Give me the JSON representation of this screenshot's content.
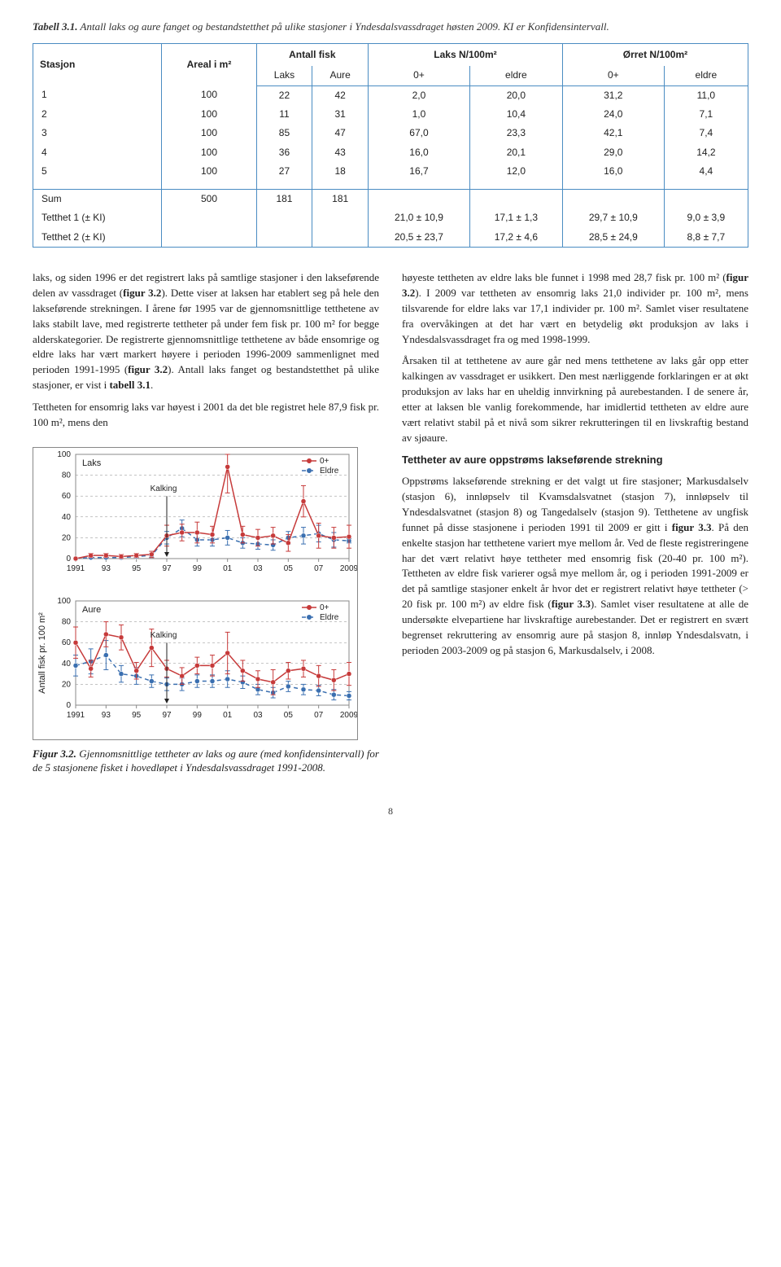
{
  "caption": {
    "label": "Tabell 3.1.",
    "text": " Antall laks og aure fanget og bestandstetthet på ulike stasjoner i Yndesdalsvassdraget høsten 2009. KI er Konfidensintervall."
  },
  "table": {
    "headers": {
      "stasjon": "Stasjon",
      "areal": "Areal i m²",
      "antall": "Antall fisk",
      "laksN": "Laks N/100m²",
      "orretN": "Ørret N/100m²",
      "laks": "Laks",
      "aure": "Aure",
      "zp": "0+",
      "eldre": "eldre"
    },
    "rows": [
      {
        "st": "1",
        "ar": "100",
        "la": "22",
        "au": "42",
        "l0": "2,0",
        "le": "20,0",
        "o0": "31,2",
        "oe": "11,0"
      },
      {
        "st": "2",
        "ar": "100",
        "la": "11",
        "au": "31",
        "l0": "1,0",
        "le": "10,4",
        "o0": "24,0",
        "oe": "7,1"
      },
      {
        "st": "3",
        "ar": "100",
        "la": "85",
        "au": "47",
        "l0": "67,0",
        "le": "23,3",
        "o0": "42,1",
        "oe": "7,4"
      },
      {
        "st": "4",
        "ar": "100",
        "la": "36",
        "au": "43",
        "l0": "16,0",
        "le": "20,1",
        "o0": "29,0",
        "oe": "14,2"
      },
      {
        "st": "5",
        "ar": "100",
        "la": "27",
        "au": "18",
        "l0": "16,7",
        "le": "12,0",
        "o0": "16,0",
        "oe": "4,4"
      }
    ],
    "sum": {
      "label": "Sum",
      "ar": "500",
      "la": "181",
      "au": "181"
    },
    "t1": {
      "label": "Tetthet 1 (± KI)",
      "l0": "21,0 ± 10,9",
      "le": "17,1 ± 1,3",
      "o0": "29,7 ± 10,9",
      "oe": "9,0 ± 3,9"
    },
    "t2": {
      "label": "Tetthet 2 (± KI)",
      "l0": "20,5 ± 23,7",
      "le": "17,2 ± 4,6",
      "o0": "28,5 ± 24,9",
      "oe": "8,8 ± 7,7"
    }
  },
  "body": {
    "left1": "laks, og siden 1996 er det registrert laks på samtlige stasjoner i den lakseførende delen av vassdraget (",
    "left1b": "figur 3.2",
    "left1c": "). Dette viser at laksen har etablert seg på hele den lakseførende strekningen. I årene før 1995 var de gjennomsnittlige tetthetene av laks stabilt lave, med registrerte tettheter på under fem fisk pr. 100 m² for begge alderskategorier. De registrerte gjennomsnittlige tetthetene av både ensomrige og eldre laks har vært markert høyere i perioden 1996-2009 sammenlignet med perioden 1991-1995 (",
    "left1d": "figur 3.2",
    "left1e": "). Antall laks fanget og bestandstetthet på ulike stasjoner, er vist i ",
    "left1f": "tabell 3.1",
    "left1g": ".",
    "left2": "Tettheten for ensomrig laks var høyest i 2001 da det ble registret hele 87,9 fisk pr. 100 m², mens den",
    "right1a": "høyeste tettheten av eldre laks ble funnet i 1998 med 28,7 fisk pr. 100 m² (",
    "right1b": "figur 3.2",
    "right1c": "). I 2009 var tettheten av ensomrig laks 21,0 individer pr. 100 m², mens tilsvarende for eldre laks var 17,1 individer pr. 100 m². Samlet viser resultatene fra overvåkingen at det har vært en betydelig økt produksjon av laks i Yndesdalsvassdraget fra og med 1998-1999.",
    "right2": "Årsaken til at tetthetene av aure går ned mens tetthetene av laks går opp etter kalkingen av vassdraget er usikkert. Den mest nærliggende forklaringen er at økt produksjon av laks har en uheldig innvirkning på aurebestanden. I de senere år, etter at laksen ble vanlig forekommende, har imidlertid tettheten av eldre aure vært relativt stabil på et nivå som sikrer rekrutteringen til en livskraftig bestand av sjøaure.",
    "right3head": "Tettheter av aure oppstrøms lakseførende strekning",
    "right3a": "Oppstrøms lakseførende strekning er det valgt ut fire stasjoner; Markusdalselv (stasjon 6), innløpselv til Kvamsdalsvatnet (stasjon 7), innløpselv til Yndesdalsvatnet (stasjon 8) og Tangedalselv (stasjon 9). Tetthetene av ungfisk funnet på disse stasjonene i perioden 1991 til 2009 er gitt i ",
    "right3b": "figur 3.3",
    "right3c": ". På den enkelte stasjon har tetthetene variert mye mellom år. Ved de fleste registreringene har det vært relativt høye tettheter med ensomrig fisk (20-40 pr. 100 m²). Tettheten av eldre fisk varierer også mye mellom år, og i perioden 1991-2009 er det på samtlige stasjoner enkelt år hvor det er registrert relativt høye tettheter (> 20 fisk pr. 100 m²) av eldre fisk (",
    "right3d": "figur 3.3",
    "right3e": "). Samlet viser resultatene at alle de undersøkte elvepartiene har livskraftige aurebestander. Det er registrert en svært begrenset rekruttering av ensomrig aure på stasjon 8, innløp Yndesdalsvatn, i perioden 2003-2009 og på stasjon 6, Markusdalselv, i 2008."
  },
  "figure": {
    "caption_label": "Figur 3.2.",
    "caption_text": " Gjennomsnittlige tettheter av laks og aure (med konfidensintervall) for de 5 stasjonene fisket i hovedløpet i Yndesdalsvassdraget 1991-2008.",
    "ylabel": "Antall fisk pr. 100 m²",
    "legend": {
      "zp": "0+",
      "eldre": "Eldre"
    },
    "xticks": [
      "1991",
      "93",
      "95",
      "97",
      "99",
      "01",
      "03",
      "05",
      "07",
      "2009"
    ],
    "years": [
      1991,
      1992,
      1993,
      1994,
      1995,
      1996,
      1997,
      1998,
      1999,
      2000,
      2001,
      2002,
      2003,
      2004,
      2005,
      2006,
      2007,
      2008,
      2009
    ],
    "ylim": [
      0,
      100
    ],
    "ytick_step": 20,
    "colors": {
      "zp": "#c63a3a",
      "eldre": "#3a6fb0",
      "grid": "#888888",
      "border": "#888888",
      "bg": "#ffffff"
    },
    "kalking_label": "Kalking",
    "panels": [
      {
        "name": "Laks",
        "kalking_x": 1997,
        "zp": [
          0,
          3,
          3,
          2,
          3,
          4,
          22,
          25,
          25,
          23,
          88,
          23,
          20,
          22,
          15,
          55,
          22,
          20,
          21
        ],
        "zp_err": [
          0,
          2,
          2,
          2,
          2,
          3,
          10,
          8,
          10,
          8,
          25,
          8,
          8,
          8,
          8,
          15,
          12,
          10,
          11
        ],
        "eldre": [
          0,
          1,
          1,
          1,
          2,
          3,
          20,
          29,
          18,
          18,
          20,
          15,
          14,
          13,
          20,
          22,
          24,
          18,
          17
        ],
        "eldre_err": [
          0,
          1,
          1,
          1,
          1,
          2,
          6,
          8,
          6,
          6,
          7,
          5,
          5,
          5,
          6,
          8,
          8,
          7,
          2
        ]
      },
      {
        "name": "Aure",
        "kalking_x": 1997,
        "zp": [
          60,
          35,
          68,
          65,
          33,
          55,
          35,
          28,
          38,
          38,
          50,
          33,
          25,
          22,
          33,
          35,
          28,
          24,
          30
        ],
        "zp_err": [
          15,
          8,
          12,
          12,
          8,
          18,
          8,
          8,
          8,
          10,
          20,
          10,
          8,
          12,
          8,
          8,
          10,
          10,
          11
        ],
        "eldre": [
          38,
          42,
          48,
          30,
          28,
          23,
          20,
          20,
          23,
          23,
          25,
          22,
          15,
          12,
          18,
          15,
          14,
          10,
          9
        ],
        "eldre_err": [
          10,
          12,
          14,
          8,
          8,
          6,
          6,
          6,
          6,
          6,
          8,
          6,
          5,
          5,
          5,
          5,
          5,
          5,
          4
        ]
      }
    ]
  },
  "pagenum": "8"
}
